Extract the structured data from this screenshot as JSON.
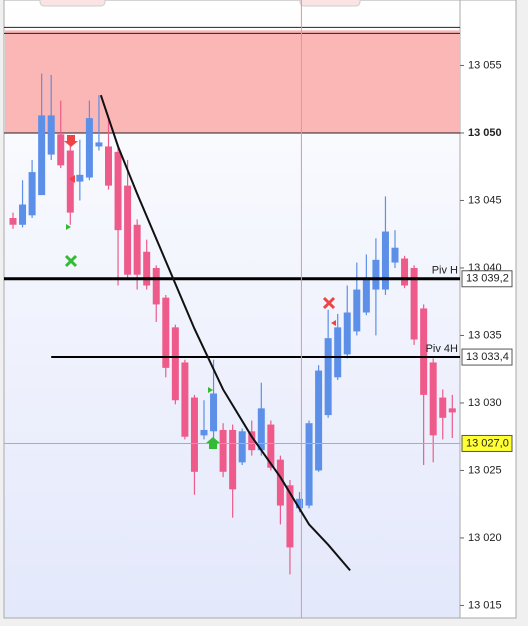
{
  "chart_data": {
    "type": "candlestick",
    "up_color": "#5b8fe8",
    "down_color": "#ee5b8a",
    "open": [
      13043.7,
      13043.2,
      13043.9,
      13045.4,
      13048.4,
      13049.9,
      13048.7,
      13046.4,
      13046.7,
      13049.0,
      13049.0,
      13048.6,
      13046.1,
      13043.2,
      13041.2,
      13040.0,
      13037.8,
      13035.6,
      13033.0,
      13030.4,
      13027.6,
      13027.9,
      13028.0,
      13028.0,
      13025.6,
      13027.9,
      13026.5,
      13028.4,
      13025.8,
      13023.9,
      13022.2,
      13022.4,
      13025.0,
      13029.1,
      13031.9,
      13033.6,
      13035.3,
      13036.7,
      13038.4,
      13038.4,
      13040.4,
      13040.7,
      13040.0,
      13037.0,
      13033.0,
      13030.4,
      13029.6
    ],
    "high": [
      13044.1,
      13046.5,
      13048.0,
      13054.4,
      13054.3,
      13052.4,
      13049.1,
      13049.5,
      13052.4,
      13052.8,
      13051.0,
      13049.1,
      13048.0,
      13043.6,
      13042.1,
      13040.2,
      13038.0,
      13035.8,
      13033.2,
      13030.6,
      13030.2,
      13033.2,
      13028.5,
      13028.4,
      13028.1,
      13028.7,
      13031.5,
      13028.7,
      13026.1,
      13024.3,
      13023.4,
      13028.7,
      13032.8,
      13036.9,
      13036.6,
      13038.7,
      13040.4,
      13041.0,
      13042.2,
      13045.3,
      13042.8,
      13040.9,
      13040.2,
      13037.3,
      13033.3,
      13031.0,
      13030.6
    ],
    "low": [
      13042.9,
      13043.0,
      13043.7,
      13045.4,
      13048.0,
      13047.4,
      13043.2,
      13045.0,
      13046.5,
      13048.7,
      13045.8,
      13038.7,
      13039.1,
      13038.4,
      13038.4,
      13036.0,
      13031.9,
      13029.9,
      13027.3,
      13023.2,
      13027.3,
      13027.3,
      13024.5,
      13021.5,
      13025.4,
      13026.1,
      13026.1,
      13025.0,
      13021.0,
      13017.3,
      13021.9,
      13022.2,
      13024.9,
      13028.9,
      13031.7,
      13033.3,
      13035.0,
      13036.5,
      13035.0,
      13038.0,
      13040.0,
      13038.5,
      13034.3,
      13025.4,
      13025.6,
      13027.3,
      13027.4
    ],
    "close": [
      13043.2,
      13044.7,
      13047.1,
      13051.3,
      13051.3,
      13047.6,
      13044.1,
      13046.9,
      13051.1,
      13049.3,
      13046.1,
      13042.8,
      13039.5,
      13039.5,
      13038.7,
      13037.3,
      13032.6,
      13030.2,
      13027.5,
      13024.9,
      13028.0,
      13030.7,
      13024.9,
      13023.6,
      13027.9,
      13026.5,
      13029.6,
      13025.2,
      13022.4,
      13019.3,
      13022.9,
      13028.5,
      13032.4,
      13034.8,
      13035.6,
      13036.7,
      13038.4,
      13039.3,
      13040.6,
      13042.7,
      13041.5,
      13038.7,
      13034.7,
      13030.6,
      13027.6,
      13028.9,
      13029.3
    ],
    "ylim": [
      13014.07,
      13059.85
    ],
    "yticks": [
      {
        "value": 13055,
        "label": "13 055"
      },
      {
        "value": 13050,
        "label": "13 050",
        "bold": true
      },
      {
        "value": 13045,
        "label": "13 045"
      },
      {
        "value": 13040,
        "label": "13 040"
      },
      {
        "value": 13035,
        "label": "13 035"
      },
      {
        "value": 13030,
        "label": "13 030"
      },
      {
        "value": 13025,
        "label": "13 025"
      },
      {
        "value": 13020,
        "label": "13 020"
      },
      {
        "value": 13015,
        "label": "13 015"
      }
    ],
    "zone": {
      "low": 13050,
      "high": 13057.6,
      "color": "#fbb6b6"
    },
    "levels": [
      {
        "label": "Piv H",
        "value": 13039.2,
        "value_label": "13 039,2",
        "start": 0
      },
      {
        "label": "Piv 4H",
        "value": 13033.4,
        "value_label": "13 033,4",
        "start": 4
      }
    ],
    "cursor": {
      "x": 30.2,
      "value": 13027.0,
      "value_label": "13 027,0"
    },
    "trendline": {
      "x": [
        9.2,
        11,
        13,
        16,
        19,
        22,
        25,
        28,
        31,
        33,
        35.3
      ],
      "y": [
        13052.8,
        13049.0,
        13045.5,
        13040.5,
        13035.5,
        13031.0,
        13027.5,
        13024.5,
        13021.0,
        13019.5,
        13017.6
      ]
    }
  }
}
